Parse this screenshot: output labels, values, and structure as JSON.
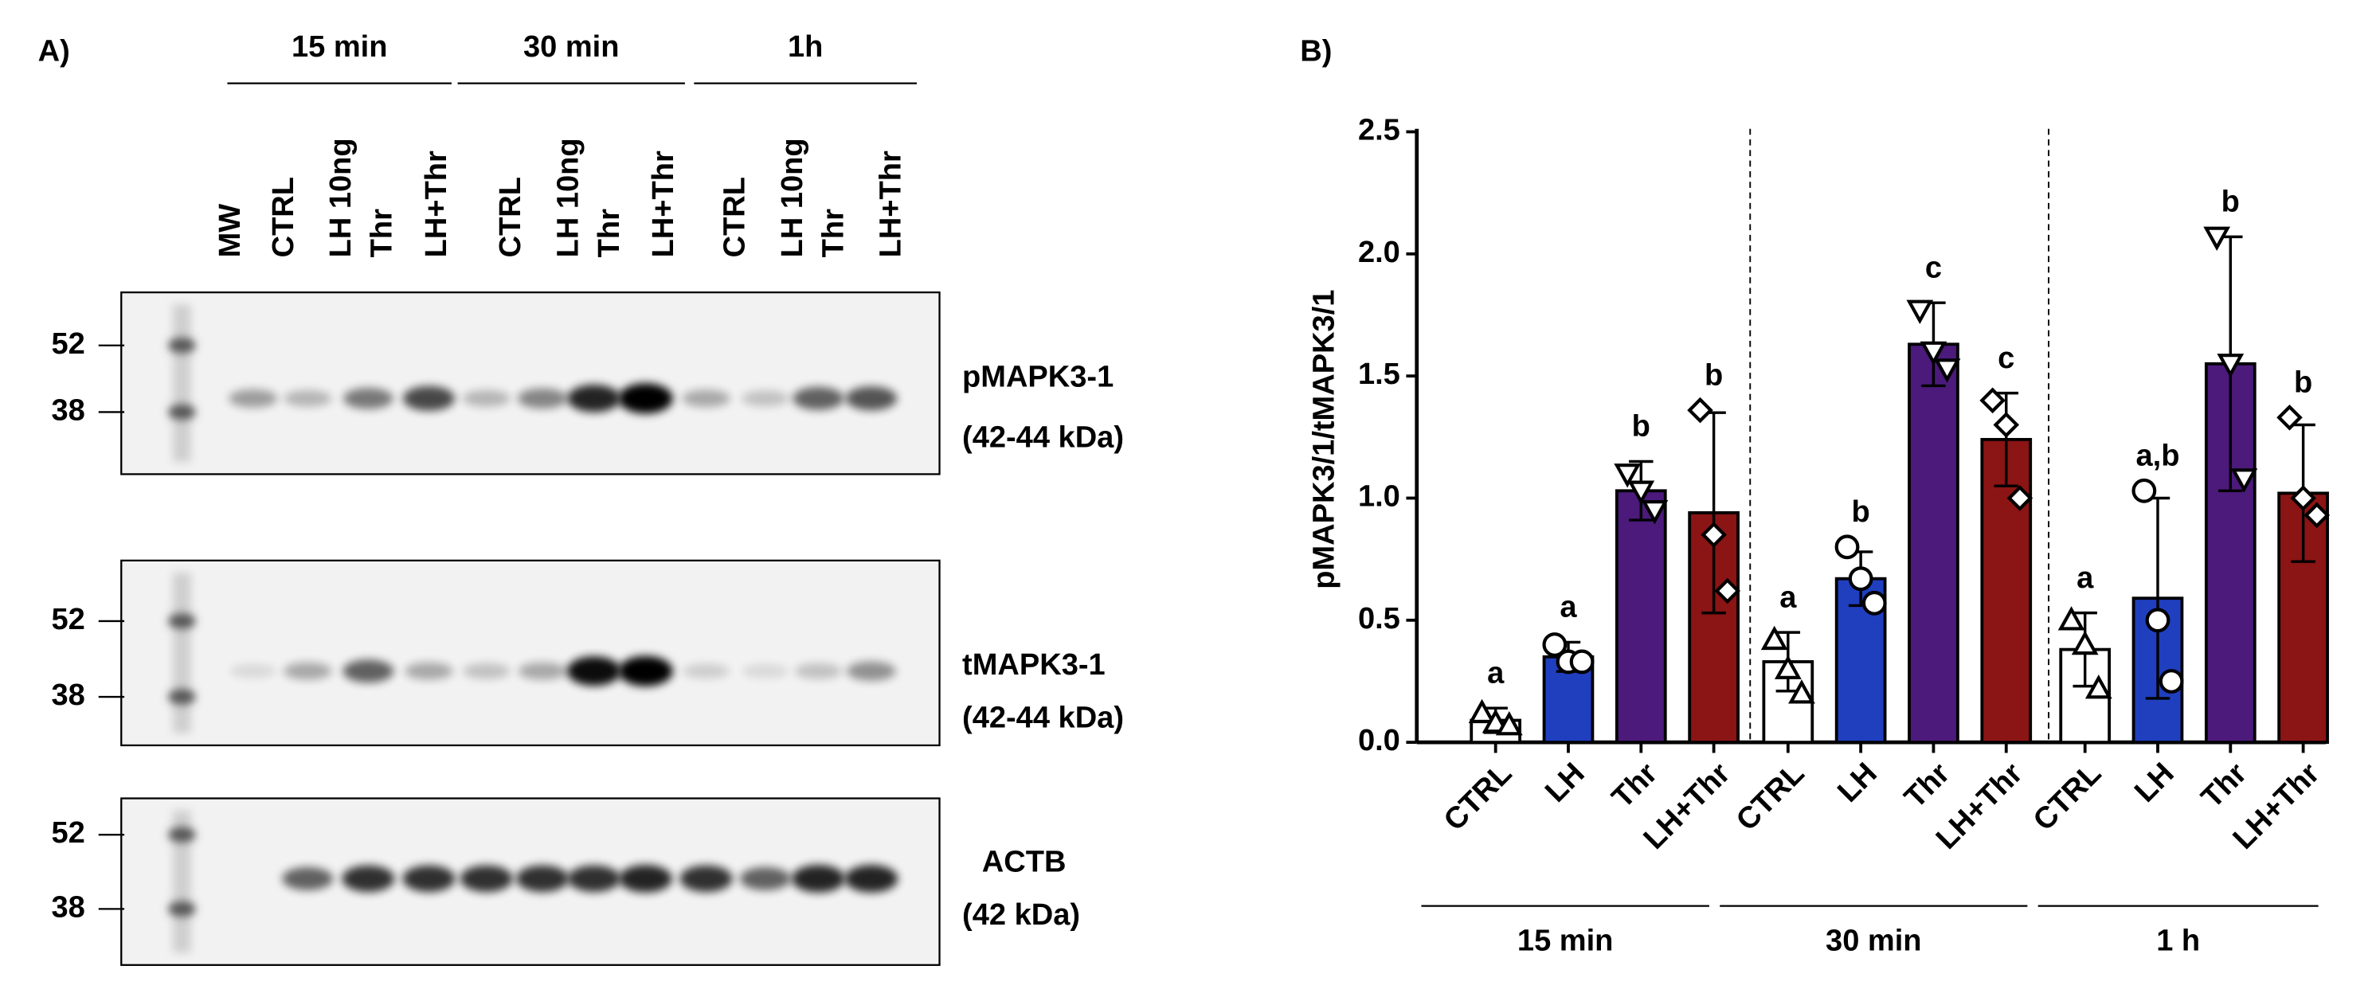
{
  "panel_a": {
    "label": "A)",
    "groups": [
      "15 min",
      "30 min",
      "1h"
    ],
    "lanes": [
      "MW",
      "CTRL",
      "LH 10ng",
      "Thr",
      "LH+Thr",
      "CTRL",
      "LH 10ng",
      "Thr",
      "LH+Thr",
      "CTRL",
      "LH 10ng",
      "Thr",
      "LH+Thr"
    ],
    "blots": [
      {
        "name": "pMAPK3-1",
        "size": "(42-44 kDa)",
        "markers": [
          52,
          38
        ]
      },
      {
        "name": "tMAPK3-1",
        "size": "(42-44 kDa)",
        "markers": [
          52,
          38
        ]
      },
      {
        "name": "ACTB",
        "size": "(42 kDa)",
        "markers": [
          52,
          38
        ]
      }
    ]
  },
  "chart_data": {
    "type": "bar",
    "label": "B)",
    "y_label": "pMAPK3/1/tMAPK3/1",
    "categories": [
      "CTRL",
      "LH",
      "Thr",
      "LH+Thr",
      "CTRL",
      "LH",
      "Thr",
      "LH+Thr",
      "CTRL",
      "LH",
      "Thr",
      "LH+Thr"
    ],
    "groups": [
      "15 min",
      "30 min",
      "1 h"
    ],
    "values": [
      0.09,
      0.35,
      1.03,
      0.94,
      0.33,
      0.67,
      1.63,
      1.24,
      0.38,
      0.59,
      1.55,
      1.02
    ],
    "errors": [
      0.05,
      0.06,
      0.12,
      0.41,
      0.12,
      0.11,
      0.17,
      0.19,
      0.15,
      0.41,
      0.52,
      0.28
    ],
    "points": [
      [
        0.12,
        0.08,
        0.07
      ],
      [
        0.4,
        0.33,
        0.33
      ],
      [
        1.1,
        1.03,
        0.95
      ],
      [
        1.36,
        0.85,
        0.62
      ],
      [
        0.42,
        0.3,
        0.2
      ],
      [
        0.8,
        0.67,
        0.57
      ],
      [
        1.77,
        1.6,
        1.53
      ],
      [
        1.4,
        1.3,
        1.0
      ],
      [
        0.5,
        0.4,
        0.22
      ],
      [
        1.03,
        0.5,
        0.25
      ],
      [
        2.07,
        1.55,
        1.08
      ],
      [
        1.33,
        1.0,
        0.93
      ]
    ],
    "significance": [
      "a",
      "a",
      "b",
      "b",
      "a",
      "b",
      "c",
      "c",
      "a",
      "a,b",
      "b",
      "b"
    ],
    "colors": [
      "#ffffff",
      "#1f3fbf",
      "#4b1a7a",
      "#8b1414",
      "#ffffff",
      "#1f3fbf",
      "#4b1a7a",
      "#8b1414",
      "#ffffff",
      "#1f3fbf",
      "#4b1a7a",
      "#8b1414"
    ],
    "ylim": [
      0,
      2.5
    ],
    "yticks": [
      {
        "value": 0,
        "label": "0.0"
      },
      0.5,
      {
        "value": 1,
        "label": "1.0"
      },
      1.5,
      {
        "value": 2,
        "label": "2.0"
      },
      2.5
    ]
  }
}
